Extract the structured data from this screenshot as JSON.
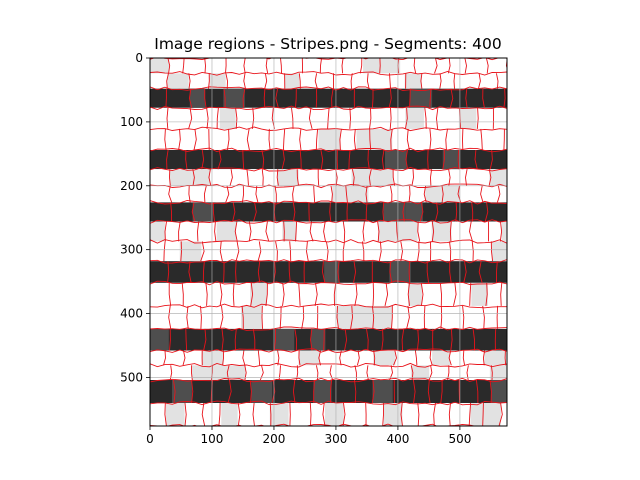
{
  "chart_data": {
    "type": "image",
    "title": "Image regions - Stripes.png - Segments: 400",
    "xlabel": "",
    "ylabel": "",
    "image": {
      "width": 576,
      "height": 576
    },
    "xlim": [
      0,
      576
    ],
    "ylim": [
      576,
      0
    ],
    "xticks": [
      0,
      100,
      200,
      300,
      400,
      500
    ],
    "yticks": [
      0,
      100,
      200,
      300,
      400,
      500
    ],
    "grid": true,
    "segment_count": 400,
    "boundary_color": "#e8131a",
    "stripes": [
      {
        "y0": 0,
        "y1": 48,
        "tone": "light"
      },
      {
        "y0": 48,
        "y1": 78,
        "tone": "dark"
      },
      {
        "y0": 78,
        "y1": 144,
        "tone": "light"
      },
      {
        "y0": 144,
        "y1": 174,
        "tone": "dark"
      },
      {
        "y0": 174,
        "y1": 226,
        "tone": "light"
      },
      {
        "y0": 226,
        "y1": 256,
        "tone": "dark"
      },
      {
        "y0": 256,
        "y1": 318,
        "tone": "light"
      },
      {
        "y0": 318,
        "y1": 352,
        "tone": "dark"
      },
      {
        "y0": 352,
        "y1": 424,
        "tone": "light"
      },
      {
        "y0": 424,
        "y1": 458,
        "tone": "dark"
      },
      {
        "y0": 458,
        "y1": 504,
        "tone": "light"
      },
      {
        "y0": 504,
        "y1": 540,
        "tone": "dark"
      },
      {
        "y0": 540,
        "y1": 576,
        "tone": "light"
      }
    ],
    "shades": {
      "light": "#ffffff",
      "light_alt": "#e2e2e2",
      "dark": "#2a2a2a",
      "dark_alt": "#4e4e4e"
    }
  }
}
